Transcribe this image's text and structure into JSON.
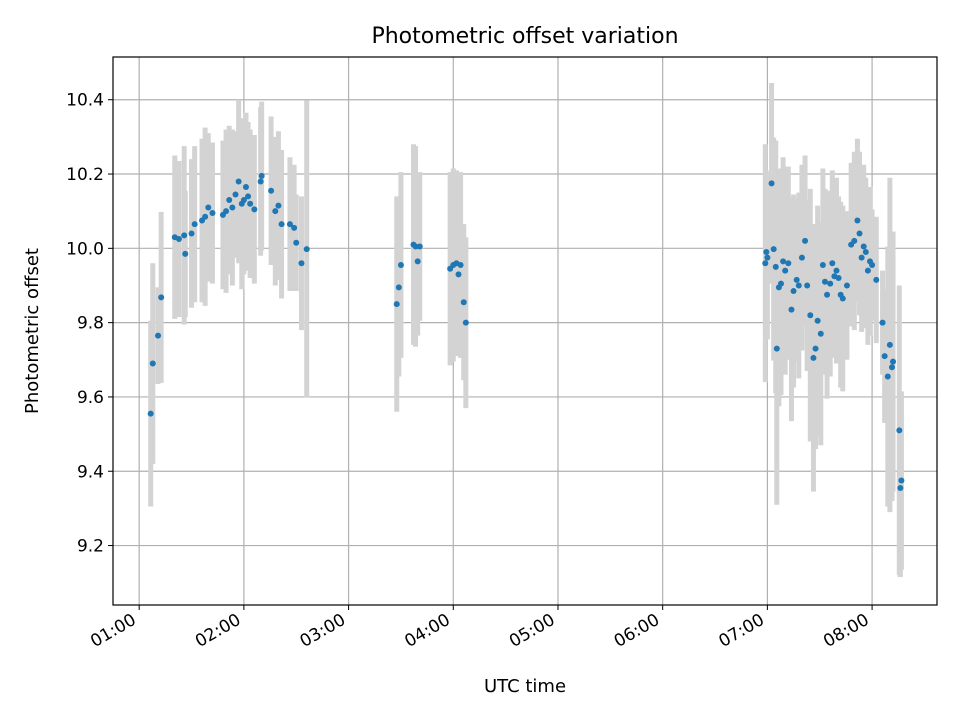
{
  "chart_data": {
    "type": "scatter",
    "title": "Photometric offset variation",
    "xlabel": "UTC time",
    "ylabel": "Photometric offset",
    "x_unit": "hours UTC",
    "xlim": [
      0.75,
      8.62
    ],
    "ylim": [
      9.04,
      10.515
    ],
    "x_ticks": [
      {
        "value": 1,
        "label": "01:00"
      },
      {
        "value": 2,
        "label": "02:00"
      },
      {
        "value": 3,
        "label": "03:00"
      },
      {
        "value": 4,
        "label": "04:00"
      },
      {
        "value": 5,
        "label": "05:00"
      },
      {
        "value": 6,
        "label": "06:00"
      },
      {
        "value": 7,
        "label": "07:00"
      },
      {
        "value": 8,
        "label": "08:00"
      }
    ],
    "y_ticks": [
      {
        "value": 9.2,
        "label": "9.2"
      },
      {
        "value": 9.4,
        "label": "9.4"
      },
      {
        "value": 9.6,
        "label": "9.6"
      },
      {
        "value": 9.8,
        "label": "9.8"
      },
      {
        "value": 10.0,
        "label": "10.0"
      },
      {
        "value": 10.2,
        "label": "10.2"
      },
      {
        "value": 10.4,
        "label": "10.4"
      }
    ],
    "grid": true,
    "colors": {
      "point": "#1f77b4",
      "errorbar": "#d3d3d3",
      "grid": "#b0b0b0"
    },
    "points": [
      {
        "x": 1.11,
        "y": 9.555,
        "err": 0.25
      },
      {
        "x": 1.13,
        "y": 9.69,
        "err": 0.27
      },
      {
        "x": 1.18,
        "y": 9.765,
        "err": 0.13
      },
      {
        "x": 1.21,
        "y": 9.868,
        "err": 0.23
      },
      {
        "x": 1.34,
        "y": 10.03,
        "err": 0.22
      },
      {
        "x": 1.38,
        "y": 10.025,
        "err": 0.21
      },
      {
        "x": 1.43,
        "y": 10.035,
        "err": 0.24
      },
      {
        "x": 1.44,
        "y": 9.985,
        "err": 0.17
      },
      {
        "x": 1.5,
        "y": 10.04,
        "err": 0.2
      },
      {
        "x": 1.53,
        "y": 10.065,
        "err": 0.21
      },
      {
        "x": 1.6,
        "y": 10.075,
        "err": 0.22
      },
      {
        "x": 1.63,
        "y": 10.085,
        "err": 0.24
      },
      {
        "x": 1.66,
        "y": 10.11,
        "err": 0.2
      },
      {
        "x": 1.7,
        "y": 10.095,
        "err": 0.19
      },
      {
        "x": 1.8,
        "y": 10.09,
        "err": 0.2
      },
      {
        "x": 1.83,
        "y": 10.1,
        "err": 0.22
      },
      {
        "x": 1.86,
        "y": 10.13,
        "err": 0.2
      },
      {
        "x": 1.89,
        "y": 10.11,
        "err": 0.21
      },
      {
        "x": 1.92,
        "y": 10.145,
        "err": 0.17
      },
      {
        "x": 1.95,
        "y": 10.18,
        "err": 0.22
      },
      {
        "x": 1.98,
        "y": 10.12,
        "err": 0.23
      },
      {
        "x": 2.0,
        "y": 10.13,
        "err": 0.2
      },
      {
        "x": 2.02,
        "y": 10.165,
        "err": 0.2
      },
      {
        "x": 2.04,
        "y": 10.14,
        "err": 0.2
      },
      {
        "x": 2.06,
        "y": 10.12,
        "err": 0.2
      },
      {
        "x": 2.1,
        "y": 10.105,
        "err": 0.2
      },
      {
        "x": 2.16,
        "y": 10.18,
        "err": 0.2
      },
      {
        "x": 2.17,
        "y": 10.195,
        "err": 0.2
      },
      {
        "x": 2.26,
        "y": 10.155,
        "err": 0.2
      },
      {
        "x": 2.3,
        "y": 10.1,
        "err": 0.2
      },
      {
        "x": 2.33,
        "y": 10.115,
        "err": 0.2
      },
      {
        "x": 2.36,
        "y": 10.065,
        "err": 0.2
      },
      {
        "x": 2.44,
        "y": 10.065,
        "err": 0.18
      },
      {
        "x": 2.48,
        "y": 10.055,
        "err": 0.17
      },
      {
        "x": 2.5,
        "y": 10.015,
        "err": 0.13
      },
      {
        "x": 2.55,
        "y": 9.96,
        "err": 0.18
      },
      {
        "x": 2.6,
        "y": 9.998,
        "err": 0.4
      },
      {
        "x": 3.46,
        "y": 9.85,
        "err": 0.29
      },
      {
        "x": 3.48,
        "y": 9.895,
        "err": 0.24
      },
      {
        "x": 3.5,
        "y": 9.955,
        "err": 0.25
      },
      {
        "x": 3.62,
        "y": 10.01,
        "err": 0.27
      },
      {
        "x": 3.64,
        "y": 10.005,
        "err": 0.27
      },
      {
        "x": 3.66,
        "y": 9.965,
        "err": 0.2
      },
      {
        "x": 3.68,
        "y": 10.005,
        "err": 0.2
      },
      {
        "x": 3.97,
        "y": 9.945,
        "err": 0.26
      },
      {
        "x": 4.0,
        "y": 9.955,
        "err": 0.26
      },
      {
        "x": 4.03,
        "y": 9.96,
        "err": 0.25
      },
      {
        "x": 4.05,
        "y": 9.93,
        "err": 0.21
      },
      {
        "x": 4.07,
        "y": 9.955,
        "err": 0.25
      },
      {
        "x": 4.1,
        "y": 9.855,
        "err": 0.21
      },
      {
        "x": 4.12,
        "y": 9.8,
        "err": 0.23
      },
      {
        "x": 6.98,
        "y": 9.96,
        "err": 0.32
      },
      {
        "x": 6.99,
        "y": 9.99,
        "err": 0.22
      },
      {
        "x": 7.0,
        "y": 9.975,
        "err": 0.22
      },
      {
        "x": 7.04,
        "y": 10.175,
        "err": 0.27
      },
      {
        "x": 7.06,
        "y": 9.998,
        "err": 0.3
      },
      {
        "x": 7.08,
        "y": 9.95,
        "err": 0.34
      },
      {
        "x": 7.09,
        "y": 9.73,
        "err": 0.42
      },
      {
        "x": 7.11,
        "y": 9.895,
        "err": 0.32
      },
      {
        "x": 7.13,
        "y": 9.905,
        "err": 0.3
      },
      {
        "x": 7.15,
        "y": 9.965,
        "err": 0.28
      },
      {
        "x": 7.17,
        "y": 9.94,
        "err": 0.28
      },
      {
        "x": 7.2,
        "y": 9.96,
        "err": 0.26
      },
      {
        "x": 7.23,
        "y": 9.835,
        "err": 0.3
      },
      {
        "x": 7.25,
        "y": 9.885,
        "err": 0.26
      },
      {
        "x": 7.28,
        "y": 9.915,
        "err": 0.22
      },
      {
        "x": 7.3,
        "y": 9.9,
        "err": 0.25
      },
      {
        "x": 7.33,
        "y": 9.975,
        "err": 0.25
      },
      {
        "x": 7.36,
        "y": 10.02,
        "err": 0.23
      },
      {
        "x": 7.38,
        "y": 9.9,
        "err": 0.23
      },
      {
        "x": 7.41,
        "y": 9.82,
        "err": 0.34
      },
      {
        "x": 7.44,
        "y": 9.705,
        "err": 0.36
      },
      {
        "x": 7.46,
        "y": 9.73,
        "err": 0.27
      },
      {
        "x": 7.48,
        "y": 9.805,
        "err": 0.31
      },
      {
        "x": 7.51,
        "y": 9.77,
        "err": 0.3
      },
      {
        "x": 7.53,
        "y": 9.955,
        "err": 0.26
      },
      {
        "x": 7.55,
        "y": 9.91,
        "err": 0.25
      },
      {
        "x": 7.57,
        "y": 9.875,
        "err": 0.28
      },
      {
        "x": 7.6,
        "y": 9.905,
        "err": 0.25
      },
      {
        "x": 7.62,
        "y": 9.96,
        "err": 0.25
      },
      {
        "x": 7.64,
        "y": 9.925,
        "err": 0.22
      },
      {
        "x": 7.66,
        "y": 9.94,
        "err": 0.25
      },
      {
        "x": 7.68,
        "y": 9.92,
        "err": 0.22
      },
      {
        "x": 7.7,
        "y": 9.875,
        "err": 0.25
      },
      {
        "x": 7.72,
        "y": 9.865,
        "err": 0.25
      },
      {
        "x": 7.76,
        "y": 9.9,
        "err": 0.2
      },
      {
        "x": 7.8,
        "y": 10.01,
        "err": 0.22
      },
      {
        "x": 7.83,
        "y": 10.02,
        "err": 0.24
      },
      {
        "x": 7.86,
        "y": 10.075,
        "err": 0.22
      },
      {
        "x": 7.88,
        "y": 10.04,
        "err": 0.22
      },
      {
        "x": 7.9,
        "y": 9.975,
        "err": 0.2
      },
      {
        "x": 7.92,
        "y": 10.005,
        "err": 0.22
      },
      {
        "x": 7.94,
        "y": 9.99,
        "err": 0.2
      },
      {
        "x": 7.96,
        "y": 9.94,
        "err": 0.2
      },
      {
        "x": 7.98,
        "y": 9.965,
        "err": 0.2
      },
      {
        "x": 8.0,
        "y": 9.955,
        "err": 0.15
      },
      {
        "x": 8.04,
        "y": 9.915,
        "err": 0.17
      },
      {
        "x": 8.1,
        "y": 9.8,
        "err": 0.14
      },
      {
        "x": 8.12,
        "y": 9.71,
        "err": 0.18
      },
      {
        "x": 8.15,
        "y": 9.655,
        "err": 0.35
      },
      {
        "x": 8.17,
        "y": 9.74,
        "err": 0.45
      },
      {
        "x": 8.19,
        "y": 9.68,
        "err": 0.36
      },
      {
        "x": 8.2,
        "y": 9.695,
        "err": 0.35
      },
      {
        "x": 8.26,
        "y": 9.51,
        "err": 0.39
      },
      {
        "x": 8.27,
        "y": 9.355,
        "err": 0.24
      },
      {
        "x": 8.28,
        "y": 9.375,
        "err": 0.24
      }
    ]
  }
}
